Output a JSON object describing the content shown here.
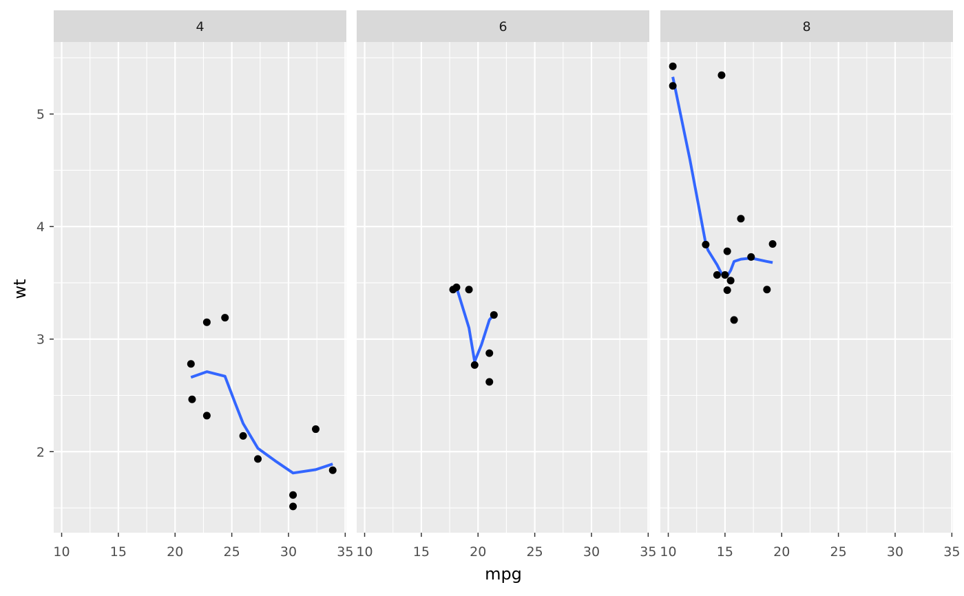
{
  "chart_data": {
    "type": "scatter",
    "xlabel": "mpg",
    "ylabel": "wt",
    "xlim": [
      9.3,
      35.1
    ],
    "ylim": [
      1.28,
      5.64
    ],
    "x_ticks": [
      10,
      15,
      20,
      25,
      30,
      35
    ],
    "y_ticks": [
      2,
      3,
      4,
      5
    ],
    "grid": true,
    "colors": {
      "panel_bg": "#EBEBEB",
      "strip_bg": "#D9D9D9",
      "grid_line": "#FFFFFF",
      "point": "#000000",
      "smooth_line": "#3366FF",
      "axis_text": "#4D4D4D",
      "strip_text": "#1A1A1A"
    },
    "facets": [
      {
        "label": "4",
        "points": [
          [
            22.8,
            2.32
          ],
          [
            24.4,
            3.19
          ],
          [
            22.8,
            3.15
          ],
          [
            32.4,
            2.2
          ],
          [
            30.4,
            1.615
          ],
          [
            33.9,
            1.835
          ],
          [
            21.5,
            2.465
          ],
          [
            27.3,
            1.935
          ],
          [
            26.0,
            2.14
          ],
          [
            30.4,
            1.513
          ],
          [
            21.4,
            2.78
          ]
        ],
        "smooth": [
          [
            21.4,
            2.66
          ],
          [
            22.8,
            2.71
          ],
          [
            24.4,
            2.67
          ],
          [
            25.3,
            2.43
          ],
          [
            26.0,
            2.25
          ],
          [
            27.3,
            2.03
          ],
          [
            28.8,
            1.92
          ],
          [
            30.4,
            1.81
          ],
          [
            32.4,
            1.84
          ],
          [
            33.9,
            1.89
          ]
        ]
      },
      {
        "label": "6",
        "points": [
          [
            21.0,
            2.62
          ],
          [
            21.0,
            2.875
          ],
          [
            21.4,
            3.215
          ],
          [
            18.1,
            3.46
          ],
          [
            19.2,
            3.44
          ],
          [
            17.8,
            3.44
          ],
          [
            19.7,
            2.77
          ]
        ],
        "smooth": [
          [
            17.8,
            3.44
          ],
          [
            18.1,
            3.46
          ],
          [
            19.2,
            3.1
          ],
          [
            19.7,
            2.8
          ],
          [
            20.3,
            2.95
          ],
          [
            21.0,
            3.17
          ],
          [
            21.4,
            3.22
          ]
        ]
      },
      {
        "label": "8",
        "points": [
          [
            18.7,
            3.44
          ],
          [
            14.3,
            3.57
          ],
          [
            16.4,
            4.07
          ],
          [
            17.3,
            3.73
          ],
          [
            15.2,
            3.78
          ],
          [
            10.4,
            5.25
          ],
          [
            10.4,
            5.424
          ],
          [
            14.7,
            5.345
          ],
          [
            15.5,
            3.52
          ],
          [
            15.2,
            3.435
          ],
          [
            13.3,
            3.84
          ],
          [
            19.2,
            3.845
          ],
          [
            15.8,
            3.17
          ],
          [
            15.0,
            3.57
          ]
        ],
        "smooth": [
          [
            10.4,
            5.33
          ],
          [
            11.9,
            4.6
          ],
          [
            13.3,
            3.85
          ],
          [
            13.5,
            3.79
          ],
          [
            14.3,
            3.66
          ],
          [
            14.7,
            3.58
          ],
          [
            15.0,
            3.55
          ],
          [
            15.2,
            3.56
          ],
          [
            15.5,
            3.61
          ],
          [
            15.8,
            3.69
          ],
          [
            16.4,
            3.71
          ],
          [
            17.3,
            3.72
          ],
          [
            18.7,
            3.69
          ],
          [
            19.2,
            3.68
          ]
        ]
      }
    ]
  }
}
